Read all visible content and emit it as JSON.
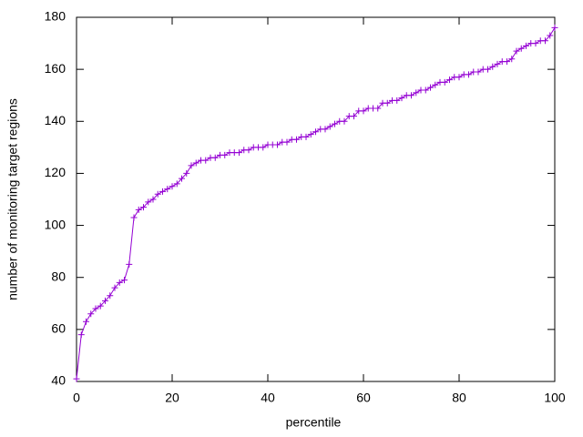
{
  "chart_data": {
    "type": "line",
    "xlabel": "percentile",
    "ylabel": "number of monitoring target regions",
    "x": [
      0,
      1,
      2,
      3,
      4,
      5,
      6,
      7,
      8,
      9,
      10,
      11,
      12,
      13,
      14,
      15,
      16,
      17,
      18,
      19,
      20,
      21,
      22,
      23,
      24,
      25,
      26,
      27,
      28,
      29,
      30,
      31,
      32,
      33,
      34,
      35,
      36,
      37,
      38,
      39,
      40,
      41,
      42,
      43,
      44,
      45,
      46,
      47,
      48,
      49,
      50,
      51,
      52,
      53,
      54,
      55,
      56,
      57,
      58,
      59,
      60,
      61,
      62,
      63,
      64,
      65,
      66,
      67,
      68,
      69,
      70,
      71,
      72,
      73,
      74,
      75,
      76,
      77,
      78,
      79,
      80,
      81,
      82,
      83,
      84,
      85,
      86,
      87,
      88,
      89,
      90,
      91,
      92,
      93,
      94,
      95,
      96,
      97,
      98,
      99,
      100
    ],
    "values": [
      41,
      58,
      63,
      66,
      68,
      69,
      71,
      73,
      76,
      78,
      79,
      85,
      103,
      106,
      107,
      109,
      110,
      112,
      113,
      114,
      115,
      116,
      118,
      120,
      123,
      124,
      125,
      125,
      126,
      126,
      127,
      127,
      128,
      128,
      128,
      129,
      129,
      130,
      130,
      130,
      131,
      131,
      131,
      132,
      132,
      133,
      133,
      134,
      134,
      135,
      136,
      137,
      137,
      138,
      139,
      140,
      140,
      142,
      142,
      144,
      144,
      145,
      145,
      145,
      147,
      147,
      148,
      148,
      149,
      150,
      150,
      151,
      152,
      152,
      153,
      154,
      155,
      155,
      156,
      157,
      157,
      158,
      158,
      159,
      159,
      160,
      160,
      161,
      162,
      163,
      163,
      164,
      167,
      168,
      169,
      170,
      170,
      171,
      171,
      173,
      176
    ],
    "color": "#9400d3",
    "xlim": [
      0,
      100
    ],
    "xticks": [
      0,
      20,
      40,
      60,
      80,
      100
    ],
    "ylim": [
      40,
      180
    ],
    "yticks": [
      40,
      60,
      80,
      100,
      120,
      140,
      160,
      180
    ],
    "grid": false
  }
}
